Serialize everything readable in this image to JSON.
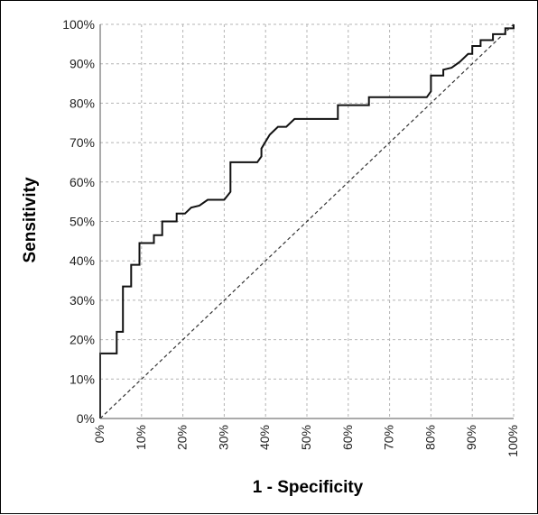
{
  "chart_data": {
    "type": "line",
    "xlabel": "1 - Specificity",
    "ylabel": "Sensitivity",
    "xlim": [
      0,
      1
    ],
    "ylim": [
      0,
      1
    ],
    "x_ticks": [
      "0%",
      "10%",
      "20%",
      "30%",
      "40%",
      "50%",
      "60%",
      "70%",
      "80%",
      "90%",
      "100%"
    ],
    "y_ticks": [
      "0%",
      "10%",
      "20%",
      "30%",
      "40%",
      "50%",
      "60%",
      "70%",
      "80%",
      "90%",
      "100%"
    ],
    "grid": true,
    "legend": "none",
    "series": [
      {
        "style": "solid",
        "color": "#111111",
        "x": [
          0,
          0,
          0.04,
          0.04,
          0.055,
          0.055,
          0.075,
          0.075,
          0.095,
          0.095,
          0.13,
          0.13,
          0.15,
          0.15,
          0.185,
          0.185,
          0.205,
          0.22,
          0.24,
          0.26,
          0.3,
          0.315,
          0.315,
          0.38,
          0.39,
          0.39,
          0.41,
          0.43,
          0.45,
          0.47,
          0.575,
          0.575,
          0.65,
          0.65,
          0.79,
          0.8,
          0.8,
          0.83,
          0.83,
          0.85,
          0.87,
          0.89,
          0.9,
          0.9,
          0.92,
          0.92,
          0.95,
          0.95,
          0.98,
          0.98,
          1.0,
          1.0
        ],
        "y": [
          0,
          0.165,
          0.165,
          0.22,
          0.22,
          0.335,
          0.335,
          0.39,
          0.39,
          0.445,
          0.445,
          0.465,
          0.465,
          0.5,
          0.5,
          0.52,
          0.52,
          0.535,
          0.54,
          0.555,
          0.555,
          0.575,
          0.65,
          0.65,
          0.665,
          0.685,
          0.72,
          0.74,
          0.74,
          0.76,
          0.76,
          0.795,
          0.795,
          0.815,
          0.815,
          0.83,
          0.87,
          0.87,
          0.885,
          0.89,
          0.905,
          0.925,
          0.925,
          0.945,
          0.945,
          0.96,
          0.96,
          0.975,
          0.975,
          0.99,
          0.99,
          1.0
        ]
      },
      {
        "style": "dashed",
        "color": "#333333",
        "x": [
          0,
          1
        ],
        "y": [
          0,
          1
        ]
      }
    ]
  }
}
